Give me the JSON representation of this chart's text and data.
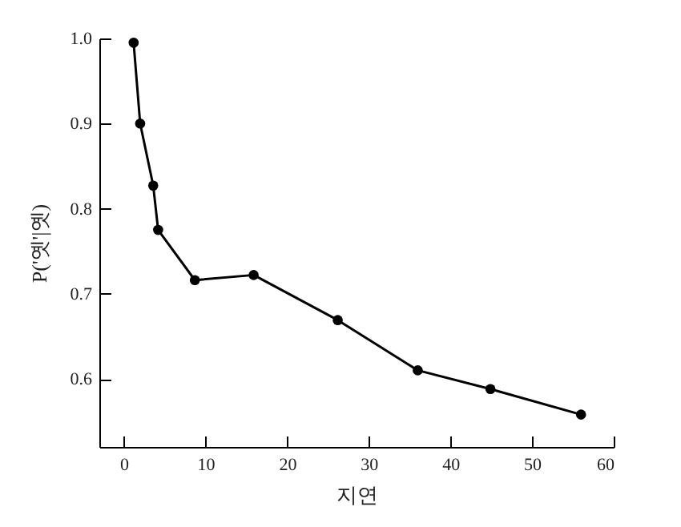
{
  "chart_data": {
    "type": "line",
    "xlabel": "지연",
    "ylabel": "P('옛'|옛)",
    "x": [
      1.2,
      2,
      3.6,
      4.2,
      8.7,
      15.9,
      26.2,
      36,
      44.9,
      56
    ],
    "values": [
      0.995,
      0.9,
      0.827,
      0.775,
      0.716,
      0.722,
      0.669,
      0.61,
      0.588,
      0.558
    ],
    "color": "#000000",
    "marker": "circle",
    "line_style": "solid",
    "grid": false,
    "xlim": [
      -3,
      60
    ],
    "xticks": [
      0,
      10,
      20,
      30,
      40,
      50,
      60
    ],
    "ylim": [
      0.52,
      1.0
    ],
    "yticks": [
      0.6,
      0.7,
      0.8,
      0.9,
      {
        "value": 1,
        "label": "1.0"
      }
    ]
  }
}
